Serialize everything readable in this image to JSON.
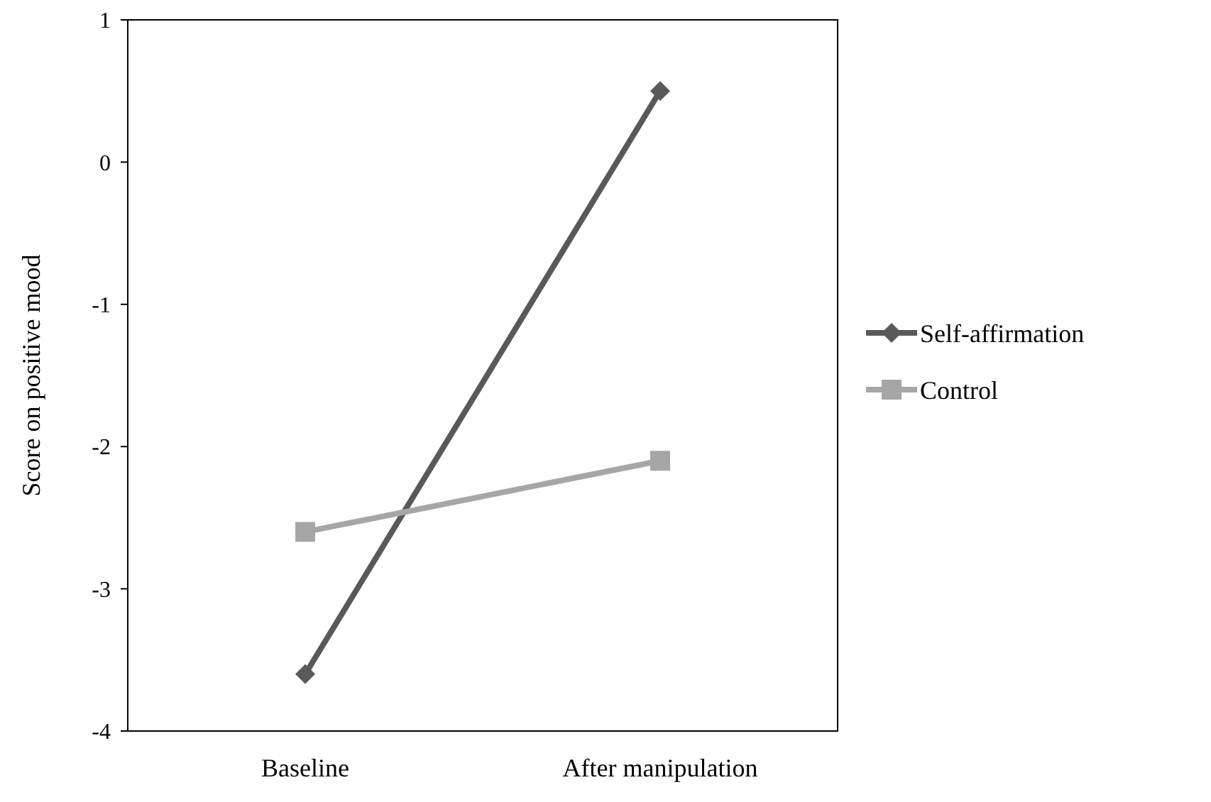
{
  "chart_data": {
    "type": "line",
    "ylabel": "Score on positive mood",
    "categories": [
      "Baseline",
      "After manipulation"
    ],
    "series": [
      {
        "name": "Self-affirmation",
        "color": "#595959",
        "marker": "diamond",
        "values": [
          -3.6,
          0.5
        ]
      },
      {
        "name": "Control",
        "color": "#a6a6a6",
        "marker": "square",
        "values": [
          -2.6,
          -2.1
        ]
      }
    ],
    "ylim": [
      -4,
      1
    ],
    "yticks": [
      -4,
      -3,
      -2,
      -1,
      0,
      1
    ],
    "grid": false,
    "legend": "right",
    "line_style": "solid"
  }
}
